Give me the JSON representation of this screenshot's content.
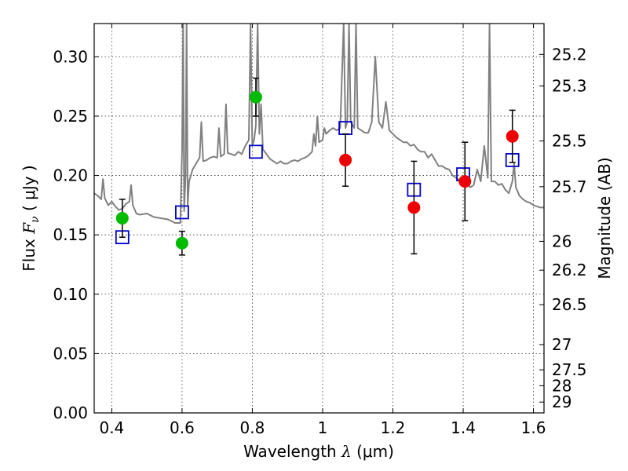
{
  "chart_data": {
    "type": "scatter",
    "xlabel": {
      "prefix": "Wavelength ",
      "symbol": "λ",
      "unit": " (μm)"
    },
    "ylabel": {
      "prefix": "Flux ",
      "symbol": "F",
      "subscript": "ν",
      "unit": " ( μJy )"
    },
    "y2label": "Magnitude (AB)",
    "xlim": [
      0.35,
      1.63
    ],
    "ylim": [
      0.0,
      0.328
    ],
    "grid": true,
    "legend": "none",
    "x_ticks": [
      {
        "value": 0.4,
        "label": "0.4"
      },
      {
        "value": 0.6,
        "label": "0.6"
      },
      {
        "value": 0.8,
        "label": "0.8"
      },
      {
        "value": 1.0,
        "label": "1"
      },
      {
        "value": 1.2,
        "label": "1.2"
      },
      {
        "value": 1.4,
        "label": "1.4"
      },
      {
        "value": 1.6,
        "label": "1.6"
      }
    ],
    "y_ticks": [
      {
        "value": 0.0,
        "label": "0.00"
      },
      {
        "value": 0.05,
        "label": "0.05"
      },
      {
        "value": 0.1,
        "label": "0.10"
      },
      {
        "value": 0.15,
        "label": "0.15"
      },
      {
        "value": 0.2,
        "label": "0.20"
      },
      {
        "value": 0.25,
        "label": "0.25"
      },
      {
        "value": 0.3,
        "label": "0.30"
      }
    ],
    "y2_ticks": [
      {
        "value": 25.2,
        "label": "25.2"
      },
      {
        "value": 25.3,
        "label": "25.3"
      },
      {
        "value": 25.5,
        "label": "25.5"
      },
      {
        "value": 25.7,
        "label": "25.7"
      },
      {
        "value": 26,
        "label": "26"
      },
      {
        "value": 26.2,
        "label": "26.2"
      },
      {
        "value": 26.5,
        "label": "26.5"
      },
      {
        "value": 27,
        "label": "27"
      },
      {
        "value": 27.5,
        "label": "27.5"
      },
      {
        "value": 28,
        "label": "28"
      },
      {
        "value": 29,
        "label": "29"
      }
    ],
    "series": [
      {
        "kind": "line",
        "color": "#808080",
        "points": [
          [
            0.35,
            0.185
          ],
          [
            0.36,
            0.183
          ],
          [
            0.37,
            0.18
          ],
          [
            0.375,
            0.197
          ],
          [
            0.38,
            0.181
          ],
          [
            0.39,
            0.175
          ],
          [
            0.4,
            0.178
          ],
          [
            0.41,
            0.174
          ],
          [
            0.42,
            0.171
          ],
          [
            0.43,
            0.172
          ],
          [
            0.44,
            0.176
          ],
          [
            0.45,
            0.178
          ],
          [
            0.455,
            0.192
          ],
          [
            0.46,
            0.175
          ],
          [
            0.47,
            0.168
          ],
          [
            0.48,
            0.167
          ],
          [
            0.5,
            0.168
          ],
          [
            0.52,
            0.165
          ],
          [
            0.54,
            0.164
          ],
          [
            0.56,
            0.163
          ],
          [
            0.58,
            0.16
          ],
          [
            0.595,
            0.16
          ],
          [
            0.6,
            0.22
          ],
          [
            0.603,
            0.328
          ],
          [
            0.606,
            0.17
          ],
          [
            0.61,
            0.2
          ],
          [
            0.613,
            0.328
          ],
          [
            0.616,
            0.175
          ],
          [
            0.62,
            0.195
          ],
          [
            0.63,
            0.205
          ],
          [
            0.64,
            0.21
          ],
          [
            0.65,
            0.215
          ],
          [
            0.655,
            0.245
          ],
          [
            0.66,
            0.212
          ],
          [
            0.67,
            0.213
          ],
          [
            0.68,
            0.215
          ],
          [
            0.69,
            0.216
          ],
          [
            0.7,
            0.215
          ],
          [
            0.705,
            0.24
          ],
          [
            0.71,
            0.216
          ],
          [
            0.72,
            0.218
          ],
          [
            0.725,
            0.26
          ],
          [
            0.73,
            0.219
          ],
          [
            0.74,
            0.218
          ],
          [
            0.75,
            0.217
          ],
          [
            0.76,
            0.22
          ],
          [
            0.77,
            0.218
          ],
          [
            0.78,
            0.225
          ],
          [
            0.79,
            0.23
          ],
          [
            0.795,
            0.328
          ],
          [
            0.8,
            0.225
          ],
          [
            0.805,
            0.23
          ],
          [
            0.81,
            0.242
          ],
          [
            0.815,
            0.328
          ],
          [
            0.82,
            0.235
          ],
          [
            0.825,
            0.26
          ],
          [
            0.83,
            0.222
          ],
          [
            0.84,
            0.218
          ],
          [
            0.85,
            0.214
          ],
          [
            0.86,
            0.212
          ],
          [
            0.87,
            0.21
          ],
          [
            0.88,
            0.212
          ],
          [
            0.89,
            0.21
          ],
          [
            0.9,
            0.21
          ],
          [
            0.91,
            0.212
          ],
          [
            0.92,
            0.213
          ],
          [
            0.93,
            0.212
          ],
          [
            0.94,
            0.214
          ],
          [
            0.95,
            0.215
          ],
          [
            0.96,
            0.217
          ],
          [
            0.97,
            0.22
          ],
          [
            0.975,
            0.235
          ],
          [
            0.98,
            0.225
          ],
          [
            0.985,
            0.25
          ],
          [
            0.99,
            0.228
          ],
          [
            1.0,
            0.23
          ],
          [
            1.005,
            0.24
          ],
          [
            1.01,
            0.235
          ],
          [
            1.02,
            0.238
          ],
          [
            1.03,
            0.24
          ],
          [
            1.04,
            0.238
          ],
          [
            1.05,
            0.24
          ],
          [
            1.06,
            0.328
          ],
          [
            1.065,
            0.24
          ],
          [
            1.07,
            0.245
          ],
          [
            1.075,
            0.328
          ],
          [
            1.08,
            0.245
          ],
          [
            1.09,
            0.24
          ],
          [
            1.095,
            0.328
          ],
          [
            1.1,
            0.24
          ],
          [
            1.11,
            0.238
          ],
          [
            1.12,
            0.236
          ],
          [
            1.13,
            0.236
          ],
          [
            1.14,
            0.245
          ],
          [
            1.15,
            0.3
          ],
          [
            1.16,
            0.245
          ],
          [
            1.17,
            0.24
          ],
          [
            1.18,
            0.262
          ],
          [
            1.19,
            0.238
          ],
          [
            1.2,
            0.235
          ],
          [
            1.21,
            0.232
          ],
          [
            1.22,
            0.23
          ],
          [
            1.23,
            0.228
          ],
          [
            1.24,
            0.228
          ],
          [
            1.25,
            0.225
          ],
          [
            1.26,
            0.226
          ],
          [
            1.27,
            0.222
          ],
          [
            1.28,
            0.22
          ],
          [
            1.29,
            0.22
          ],
          [
            1.3,
            0.215
          ],
          [
            1.31,
            0.218
          ],
          [
            1.32,
            0.213
          ],
          [
            1.33,
            0.208
          ],
          [
            1.34,
            0.208
          ],
          [
            1.35,
            0.206
          ],
          [
            1.36,
            0.205
          ],
          [
            1.37,
            0.2
          ],
          [
            1.38,
            0.198
          ],
          [
            1.39,
            0.196
          ],
          [
            1.4,
            0.196
          ],
          [
            1.41,
            0.194
          ],
          [
            1.42,
            0.19
          ],
          [
            1.43,
            0.192
          ],
          [
            1.44,
            0.205
          ],
          [
            1.45,
            0.195
          ],
          [
            1.46,
            0.225
          ],
          [
            1.47,
            0.198
          ],
          [
            1.475,
            0.328
          ],
          [
            1.48,
            0.195
          ],
          [
            1.49,
            0.195
          ],
          [
            1.5,
            0.192
          ],
          [
            1.51,
            0.193
          ],
          [
            1.52,
            0.188
          ],
          [
            1.53,
            0.185
          ],
          [
            1.54,
            0.195
          ],
          [
            1.545,
            0.21
          ],
          [
            1.55,
            0.19
          ],
          [
            1.56,
            0.183
          ],
          [
            1.57,
            0.18
          ],
          [
            1.58,
            0.178
          ],
          [
            1.59,
            0.177
          ],
          [
            1.6,
            0.175
          ],
          [
            1.61,
            0.174
          ],
          [
            1.62,
            0.173
          ],
          [
            1.63,
            0.173
          ]
        ]
      },
      {
        "kind": "squares",
        "color": "#0000cc",
        "points": [
          [
            0.43,
            0.148
          ],
          [
            0.6,
            0.169
          ],
          [
            0.81,
            0.22
          ],
          [
            1.065,
            0.24
          ],
          [
            1.26,
            0.188
          ],
          [
            1.4,
            0.201
          ],
          [
            1.54,
            0.213
          ]
        ]
      },
      {
        "kind": "circles",
        "color": "#00bb00",
        "points": [
          {
            "x": 0.43,
            "y": 0.164,
            "err": 0.016
          },
          {
            "x": 0.6,
            "y": 0.143,
            "err": 0.01
          },
          {
            "x": 0.81,
            "y": 0.266,
            "err": 0.016
          }
        ]
      },
      {
        "kind": "circles",
        "color": "#ee0000",
        "points": [
          {
            "x": 1.065,
            "y": 0.213,
            "err": 0.022
          },
          {
            "x": 1.26,
            "y": 0.173,
            "err": 0.039
          },
          {
            "x": 1.405,
            "y": 0.195,
            "err": 0.033
          },
          {
            "x": 1.54,
            "y": 0.233,
            "err": 0.022
          }
        ]
      }
    ]
  }
}
